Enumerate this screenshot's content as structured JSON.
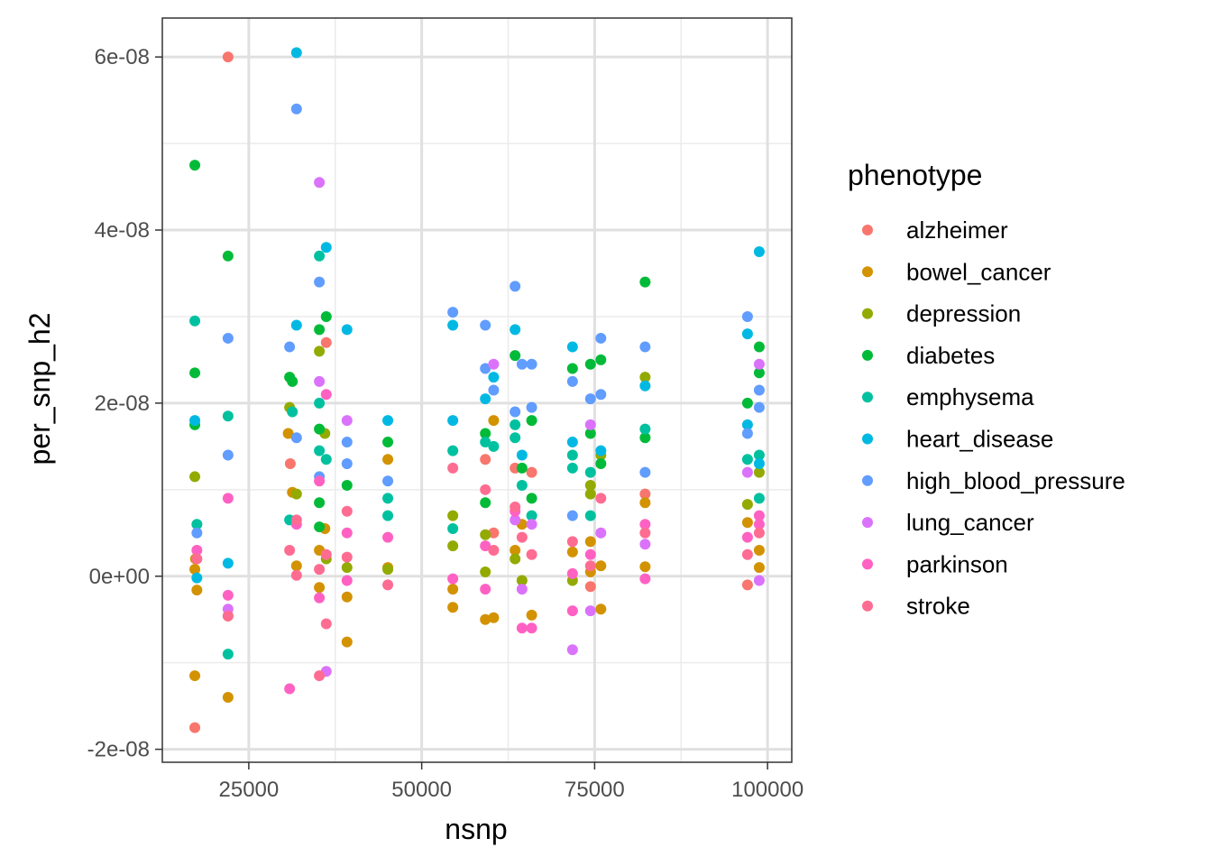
{
  "chart_data": {
    "type": "scatter",
    "title": "",
    "xlabel": "nsnp",
    "ylabel": "per_snp_h2",
    "xlim": [
      12500,
      103500
    ],
    "ylim": [
      -2.15e-08,
      6.45e-08
    ],
    "x_ticks": [
      {
        "value": 25000,
        "label": "25000"
      },
      {
        "value": 50000,
        "label": "50000"
      },
      {
        "value": 75000,
        "label": "75000"
      },
      {
        "value": 100000,
        "label": "100000"
      }
    ],
    "x_minor_ticks": [
      37500,
      62500,
      87500
    ],
    "y_ticks": [
      {
        "value": -2e-08,
        "label": "-2e-08"
      },
      {
        "value": 0,
        "label": "0e+00"
      },
      {
        "value": 2e-08,
        "label": "2e-08"
      },
      {
        "value": 4e-08,
        "label": "4e-08"
      },
      {
        "value": 6e-08,
        "label": "6e-08"
      }
    ],
    "y_minor_ticks": [
      -1e-08,
      1e-08,
      3e-08,
      5e-08
    ],
    "grid": true,
    "legend": {
      "title": "phenotype",
      "placement": "right"
    },
    "series": [
      {
        "name": "alzheimer",
        "color": "#F8766D",
        "points": [
          [
            17200,
            -1.75e-08
          ],
          [
            22000,
            6e-08
          ],
          [
            31000,
            1.3e-08
          ],
          [
            36200,
            2.7e-08
          ],
          [
            59200,
            1.35e-08
          ],
          [
            63500,
            1.25e-08
          ],
          [
            65900,
            1.2e-08
          ],
          [
            60400,
            5e-09
          ],
          [
            74400,
            -1.2e-09
          ],
          [
            82300,
            9.5e-09
          ],
          [
            97100,
            -1e-09
          ]
        ]
      },
      {
        "name": "bowel_cancer",
        "color": "#D39200",
        "points": [
          [
            17200,
            -1.15e-08
          ],
          [
            17200,
            8e-10
          ],
          [
            17500,
            -1.6e-09
          ],
          [
            17300,
            2e-09
          ],
          [
            22000,
            -1.4e-08
          ],
          [
            22000,
            -4.6e-09
          ],
          [
            30700,
            1.65e-08
          ],
          [
            31300,
            9.7e-09
          ],
          [
            31900,
            1.2e-09
          ],
          [
            35200,
            -1.3e-09
          ],
          [
            35200,
            3e-09
          ],
          [
            36000,
            5.5e-09
          ],
          [
            39200,
            -7.6e-09
          ],
          [
            39200,
            -2.4e-09
          ],
          [
            45100,
            1.35e-08
          ],
          [
            45100,
            1e-09
          ],
          [
            54500,
            -3.6e-09
          ],
          [
            54500,
            -1.5e-09
          ],
          [
            59200,
            -5e-09
          ],
          [
            60400,
            -4.8e-09
          ],
          [
            60400,
            1.8e-08
          ],
          [
            63500,
            3e-09
          ],
          [
            64500,
            6e-09
          ],
          [
            65900,
            -4.5e-09
          ],
          [
            71800,
            2.8e-09
          ],
          [
            74400,
            4e-09
          ],
          [
            74400,
            5e-10
          ],
          [
            75900,
            -3.8e-09
          ],
          [
            75900,
            1.2e-09
          ],
          [
            82300,
            8.5e-09
          ],
          [
            82300,
            1.1e-09
          ],
          [
            97100,
            6.2e-09
          ],
          [
            98800,
            3e-09
          ],
          [
            98800,
            1e-09
          ]
        ]
      },
      {
        "name": "depression",
        "color": "#93AA00",
        "points": [
          [
            17200,
            1.15e-08
          ],
          [
            30900,
            1.95e-08
          ],
          [
            31900,
            9.5e-09
          ],
          [
            35200,
            2.6e-08
          ],
          [
            36000,
            1.65e-08
          ],
          [
            36200,
            2e-09
          ],
          [
            39200,
            1e-09
          ],
          [
            45100,
            8e-10
          ],
          [
            54500,
            7e-09
          ],
          [
            54500,
            3.5e-09
          ],
          [
            59200,
            4.8e-09
          ],
          [
            59200,
            5e-10
          ],
          [
            63500,
            2e-09
          ],
          [
            64500,
            -5e-10
          ],
          [
            71800,
            -5e-10
          ],
          [
            74400,
            1.05e-08
          ],
          [
            74400,
            9.5e-09
          ],
          [
            75900,
            1.4e-08
          ],
          [
            82300,
            2.3e-08
          ],
          [
            97100,
            8.3e-09
          ],
          [
            98800,
            1.2e-08
          ]
        ]
      },
      {
        "name": "diabetes",
        "color": "#00BA38",
        "points": [
          [
            17200,
            4.75e-08
          ],
          [
            17200,
            2.35e-08
          ],
          [
            17200,
            1.75e-08
          ],
          [
            22000,
            3.7e-08
          ],
          [
            30900,
            2.3e-08
          ],
          [
            31300,
            2.25e-08
          ],
          [
            35200,
            2.85e-08
          ],
          [
            35200,
            1.7e-08
          ],
          [
            35200,
            8.5e-09
          ],
          [
            35200,
            5.7e-09
          ],
          [
            36200,
            3e-08
          ],
          [
            39200,
            1.05e-08
          ],
          [
            45100,
            1.55e-08
          ],
          [
            59200,
            1.65e-08
          ],
          [
            59200,
            8.5e-09
          ],
          [
            63500,
            2.55e-08
          ],
          [
            64500,
            1.25e-08
          ],
          [
            65900,
            1.8e-08
          ],
          [
            65900,
            9e-09
          ],
          [
            71800,
            2.4e-08
          ],
          [
            74400,
            2.45e-08
          ],
          [
            74400,
            1.65e-08
          ],
          [
            75900,
            2.5e-08
          ],
          [
            75900,
            1.3e-08
          ],
          [
            82300,
            3.4e-08
          ],
          [
            82300,
            1.6e-08
          ],
          [
            97100,
            2e-08
          ],
          [
            98800,
            2.65e-08
          ],
          [
            98800,
            2.35e-08
          ]
        ]
      },
      {
        "name": "emphysema",
        "color": "#00C19F",
        "points": [
          [
            17200,
            2.95e-08
          ],
          [
            17500,
            6e-09
          ],
          [
            22000,
            1.85e-08
          ],
          [
            22000,
            -9e-09
          ],
          [
            30900,
            6.5e-09
          ],
          [
            31300,
            1.9e-08
          ],
          [
            35200,
            3.7e-08
          ],
          [
            35200,
            2e-08
          ],
          [
            35200,
            1.45e-08
          ],
          [
            36200,
            1.35e-08
          ],
          [
            45100,
            9e-09
          ],
          [
            45100,
            7e-09
          ],
          [
            54500,
            1.45e-08
          ],
          [
            54500,
            5.5e-09
          ],
          [
            59200,
            1.55e-08
          ],
          [
            60400,
            1.5e-08
          ],
          [
            63500,
            1.75e-08
          ],
          [
            63500,
            1.6e-08
          ],
          [
            64500,
            1.05e-08
          ],
          [
            65900,
            7e-09
          ],
          [
            71800,
            1.4e-08
          ],
          [
            71800,
            1.25e-08
          ],
          [
            74400,
            1.2e-08
          ],
          [
            74400,
            7e-09
          ],
          [
            82300,
            1.7e-08
          ],
          [
            97100,
            1.35e-08
          ],
          [
            98800,
            1.4e-08
          ],
          [
            98800,
            9e-09
          ]
        ]
      },
      {
        "name": "heart_disease",
        "color": "#00B9E3",
        "points": [
          [
            17200,
            1.8e-08
          ],
          [
            17500,
            -2e-10
          ],
          [
            22000,
            1.5e-09
          ],
          [
            31900,
            6.05e-08
          ],
          [
            31900,
            2.9e-08
          ],
          [
            36200,
            3.8e-08
          ],
          [
            39200,
            2.85e-08
          ],
          [
            45100,
            1.8e-08
          ],
          [
            54500,
            2.9e-08
          ],
          [
            54500,
            1.8e-08
          ],
          [
            59200,
            2.05e-08
          ],
          [
            60400,
            2.3e-08
          ],
          [
            63500,
            2.85e-08
          ],
          [
            64500,
            1.4e-08
          ],
          [
            71800,
            2.65e-08
          ],
          [
            71800,
            1.55e-08
          ],
          [
            75900,
            1.45e-08
          ],
          [
            82300,
            2.2e-08
          ],
          [
            97100,
            2.8e-08
          ],
          [
            97100,
            1.75e-08
          ],
          [
            98800,
            3.75e-08
          ],
          [
            98800,
            1.3e-08
          ]
        ]
      },
      {
        "name": "high_blood_pressure",
        "color": "#619CFF",
        "points": [
          [
            17500,
            5e-09
          ],
          [
            22000,
            2.75e-08
          ],
          [
            22000,
            1.4e-08
          ],
          [
            30900,
            2.65e-08
          ],
          [
            31900,
            5.4e-08
          ],
          [
            31900,
            1.6e-08
          ],
          [
            35200,
            3.4e-08
          ],
          [
            35200,
            1.15e-08
          ],
          [
            39200,
            1.55e-08
          ],
          [
            39200,
            1.3e-08
          ],
          [
            45100,
            1.1e-08
          ],
          [
            54500,
            3.05e-08
          ],
          [
            59200,
            2.9e-08
          ],
          [
            59200,
            2.4e-08
          ],
          [
            60400,
            2.15e-08
          ],
          [
            63500,
            3.35e-08
          ],
          [
            63500,
            1.9e-08
          ],
          [
            64500,
            2.45e-08
          ],
          [
            65900,
            2.45e-08
          ],
          [
            65900,
            1.95e-08
          ],
          [
            71800,
            2.25e-08
          ],
          [
            71800,
            7e-09
          ],
          [
            74400,
            2.05e-08
          ],
          [
            75900,
            2.75e-08
          ],
          [
            75900,
            2.1e-08
          ],
          [
            82300,
            2.65e-08
          ],
          [
            82300,
            1.2e-08
          ],
          [
            97100,
            3e-08
          ],
          [
            97100,
            1.65e-08
          ],
          [
            98800,
            2.15e-08
          ],
          [
            98800,
            1.95e-08
          ]
        ]
      },
      {
        "name": "lung_cancer",
        "color": "#DB72FB",
        "points": [
          [
            22000,
            -3.8e-09
          ],
          [
            35200,
            4.55e-08
          ],
          [
            35200,
            2.25e-08
          ],
          [
            36200,
            -1.1e-08
          ],
          [
            39200,
            1.8e-08
          ],
          [
            60400,
            2.45e-08
          ],
          [
            63500,
            6.5e-09
          ],
          [
            64500,
            -1.5e-09
          ],
          [
            65900,
            6e-09
          ],
          [
            71800,
            -8.5e-09
          ],
          [
            74400,
            1.75e-08
          ],
          [
            74400,
            -4e-09
          ],
          [
            75900,
            5e-09
          ],
          [
            82300,
            3.7e-09
          ],
          [
            97100,
            1.2e-08
          ],
          [
            98800,
            2.45e-08
          ],
          [
            98800,
            -5e-10
          ]
        ]
      },
      {
        "name": "parkinson",
        "color": "#FF61C3",
        "points": [
          [
            17500,
            3e-09
          ],
          [
            22000,
            9e-09
          ],
          [
            22000,
            -2.2e-09
          ],
          [
            30900,
            -1.3e-08
          ],
          [
            31900,
            6e-09
          ],
          [
            35200,
            -2.5e-09
          ],
          [
            35200,
            1.1e-08
          ],
          [
            36200,
            2.1e-08
          ],
          [
            39200,
            5e-09
          ],
          [
            39200,
            -5e-10
          ],
          [
            45100,
            4.5e-09
          ],
          [
            54500,
            -3e-10
          ],
          [
            59200,
            3.5e-09
          ],
          [
            59200,
            -1.5e-09
          ],
          [
            63500,
            7.5e-09
          ],
          [
            64500,
            -6e-09
          ],
          [
            65900,
            -6e-09
          ],
          [
            71800,
            -4e-09
          ],
          [
            71800,
            3e-10
          ],
          [
            74400,
            2.5e-09
          ],
          [
            82300,
            6e-09
          ],
          [
            82300,
            -3e-10
          ],
          [
            97100,
            4.5e-09
          ],
          [
            98800,
            6e-09
          ],
          [
            98800,
            7e-09
          ]
        ]
      },
      {
        "name": "stroke",
        "color": "#FF6C91",
        "points": [
          [
            17500,
            2e-09
          ],
          [
            22000,
            -4.6e-09
          ],
          [
            30900,
            3e-09
          ],
          [
            31900,
            6.5e-09
          ],
          [
            31900,
            1e-10
          ],
          [
            35200,
            -1.15e-08
          ],
          [
            35200,
            8e-10
          ],
          [
            36200,
            -5.5e-09
          ],
          [
            36200,
            2.5e-09
          ],
          [
            39200,
            7.5e-09
          ],
          [
            39200,
            2.2e-09
          ],
          [
            45100,
            -1e-09
          ],
          [
            54500,
            1.25e-08
          ],
          [
            59200,
            1e-08
          ],
          [
            60400,
            3e-09
          ],
          [
            63500,
            8e-09
          ],
          [
            64500,
            4.5e-09
          ],
          [
            65900,
            2.5e-09
          ],
          [
            71800,
            4e-09
          ],
          [
            74400,
            1.2e-09
          ],
          [
            75900,
            9e-09
          ],
          [
            82300,
            5e-09
          ],
          [
            97100,
            2.5e-09
          ],
          [
            98800,
            5e-09
          ]
        ]
      }
    ]
  }
}
